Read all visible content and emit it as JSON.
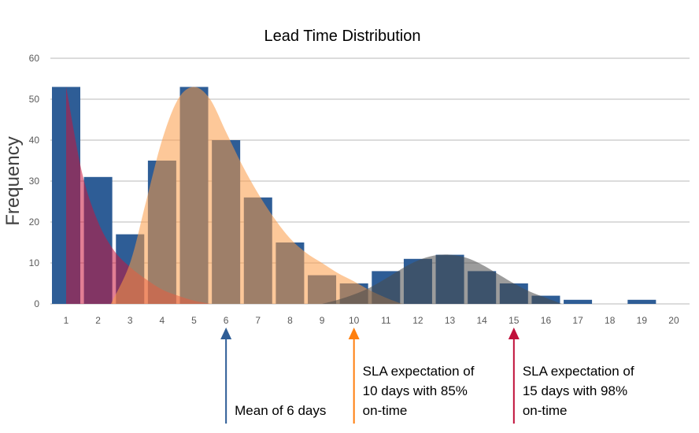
{
  "chart_data": {
    "type": "bar",
    "title": "Lead Time Distribution",
    "xlabel": "",
    "ylabel": "Frequency",
    "ylim": [
      0,
      60
    ],
    "yticks": [
      0,
      10,
      20,
      30,
      40,
      50,
      60
    ],
    "grid": true,
    "categories": [
      "1",
      "2",
      "3",
      "4",
      "5",
      "6",
      "7",
      "8",
      "9",
      "10",
      "11",
      "12",
      "13",
      "14",
      "15",
      "16",
      "17",
      "18",
      "19",
      "20"
    ],
    "values": [
      53,
      31,
      17,
      35,
      53,
      40,
      26,
      15,
      7,
      5,
      8,
      11,
      12,
      8,
      5,
      2,
      1,
      0,
      1,
      0
    ],
    "colors": {
      "bars": "#2e5d96",
      "orange_curve": "#fb9a45",
      "red_curve": "#c8143c",
      "gray_curve": "#4a4a4a"
    },
    "curves": [
      {
        "color": "#c8143c",
        "x": [
          1,
          1.5,
          2,
          2.5,
          3,
          3.5,
          4,
          4.5,
          5,
          5.5
        ],
        "y": [
          53,
          32,
          20,
          13,
          9,
          6,
          3.5,
          2,
          0.8,
          0
        ]
      },
      {
        "color": "#fb9a45",
        "x": [
          2.4,
          3,
          3.5,
          4,
          4.5,
          5,
          5.5,
          6,
          6.5,
          7,
          7.5,
          8,
          8.5,
          9,
          9.5,
          10,
          10.5,
          11,
          11.5
        ],
        "y": [
          0,
          10,
          25,
          40,
          50,
          53,
          50,
          42,
          34,
          27,
          21,
          16,
          12.5,
          10,
          7.5,
          5.5,
          3.3,
          1.5,
          0
        ]
      },
      {
        "color": "#4a4a4a",
        "x": [
          9,
          9.5,
          10,
          10.5,
          11,
          11.5,
          12,
          12.5,
          13,
          13.5,
          14,
          14.5,
          15,
          15.5,
          16,
          16.5
        ],
        "y": [
          0,
          1,
          2.3,
          4,
          6.2,
          8.6,
          10.6,
          11.8,
          12,
          11.3,
          9.6,
          7.3,
          5,
          3,
          1.5,
          0
        ]
      }
    ],
    "annotations": [
      {
        "x": 6,
        "color": "#2e5d96",
        "lines": [
          "Mean of 6 days"
        ]
      },
      {
        "x": 10,
        "color": "#ff7f0e",
        "lines": [
          "SLA expectation of",
          "10 days with 85%",
          "on-time"
        ]
      },
      {
        "x": 15,
        "color": "#c0103a",
        "lines": [
          "SLA expectation of",
          "15 days with 98%",
          "on-time"
        ]
      }
    ]
  }
}
